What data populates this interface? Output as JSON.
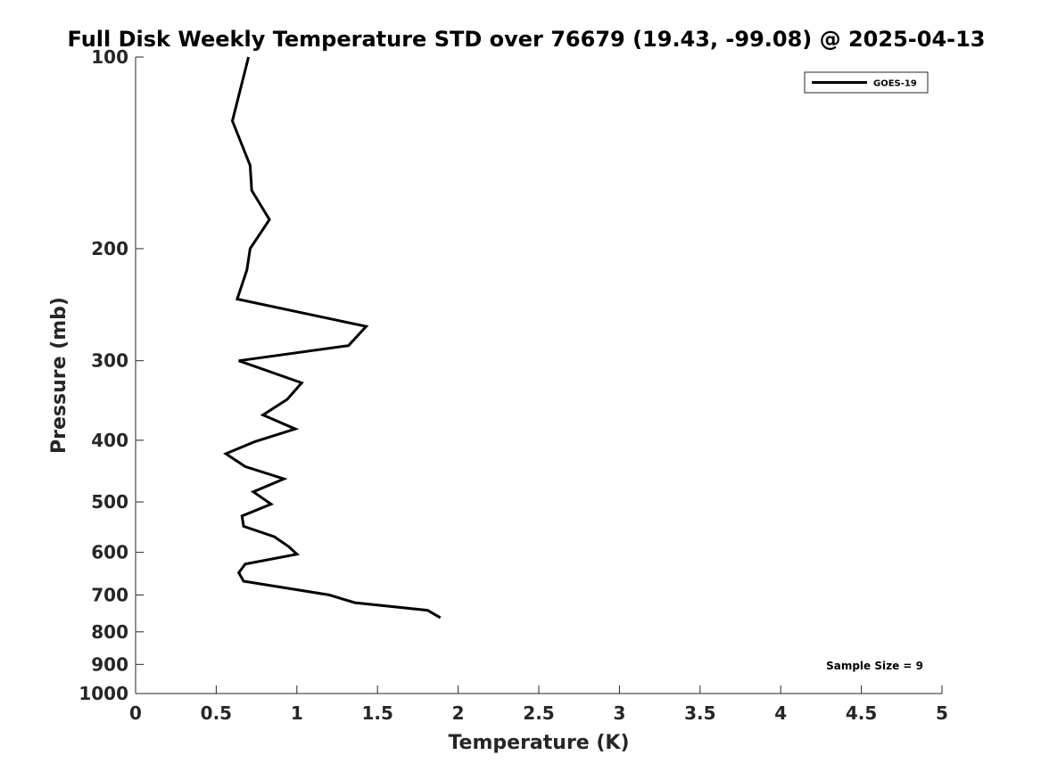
{
  "chart_data": {
    "type": "line",
    "title": "Full Disk Weekly Temperature STD over 76679 (19.43, -99.08) @ 2025-04-13",
    "xlabel": "Temperature (K)",
    "ylabel": "Pressure (mb)",
    "xlim": [
      0,
      5
    ],
    "ylim": [
      100,
      1000
    ],
    "yscale": "log",
    "y_reversed": true,
    "xticks": [
      "0",
      "0.5",
      "1",
      "1.5",
      "2",
      "2.5",
      "3",
      "3.5",
      "4",
      "4.5",
      "5"
    ],
    "yticks": [
      "100",
      "200",
      "300",
      "400",
      "500",
      "600",
      "700",
      "800",
      "900",
      "1000"
    ],
    "grid": false,
    "legend_position": "top-right",
    "series": [
      {
        "name": "GOES-19",
        "color": "#000000",
        "points": [
          {
            "x": 0.7,
            "p": 100
          },
          {
            "x": 0.6,
            "p": 126
          },
          {
            "x": 0.71,
            "p": 148
          },
          {
            "x": 0.72,
            "p": 162
          },
          {
            "x": 0.83,
            "p": 180
          },
          {
            "x": 0.71,
            "p": 200
          },
          {
            "x": 0.69,
            "p": 216
          },
          {
            "x": 0.63,
            "p": 240
          },
          {
            "x": 1.43,
            "p": 265
          },
          {
            "x": 1.32,
            "p": 284
          },
          {
            "x": 0.64,
            "p": 300
          },
          {
            "x": 1.03,
            "p": 325
          },
          {
            "x": 0.94,
            "p": 345
          },
          {
            "x": 0.79,
            "p": 365
          },
          {
            "x": 0.99,
            "p": 384
          },
          {
            "x": 0.74,
            "p": 402
          },
          {
            "x": 0.56,
            "p": 420
          },
          {
            "x": 0.68,
            "p": 440
          },
          {
            "x": 0.92,
            "p": 460
          },
          {
            "x": 0.73,
            "p": 482
          },
          {
            "x": 0.84,
            "p": 504
          },
          {
            "x": 0.66,
            "p": 526
          },
          {
            "x": 0.67,
            "p": 546
          },
          {
            "x": 0.86,
            "p": 567
          },
          {
            "x": 0.95,
            "p": 588
          },
          {
            "x": 1.0,
            "p": 604
          },
          {
            "x": 0.68,
            "p": 626
          },
          {
            "x": 0.64,
            "p": 646
          },
          {
            "x": 0.67,
            "p": 666
          },
          {
            "x": 1.2,
            "p": 700
          },
          {
            "x": 1.36,
            "p": 720
          },
          {
            "x": 1.81,
            "p": 740
          },
          {
            "x": 1.89,
            "p": 760
          }
        ]
      }
    ],
    "annotations": [
      {
        "text": "Sample Size = 9",
        "position": "bottom-right"
      }
    ]
  }
}
